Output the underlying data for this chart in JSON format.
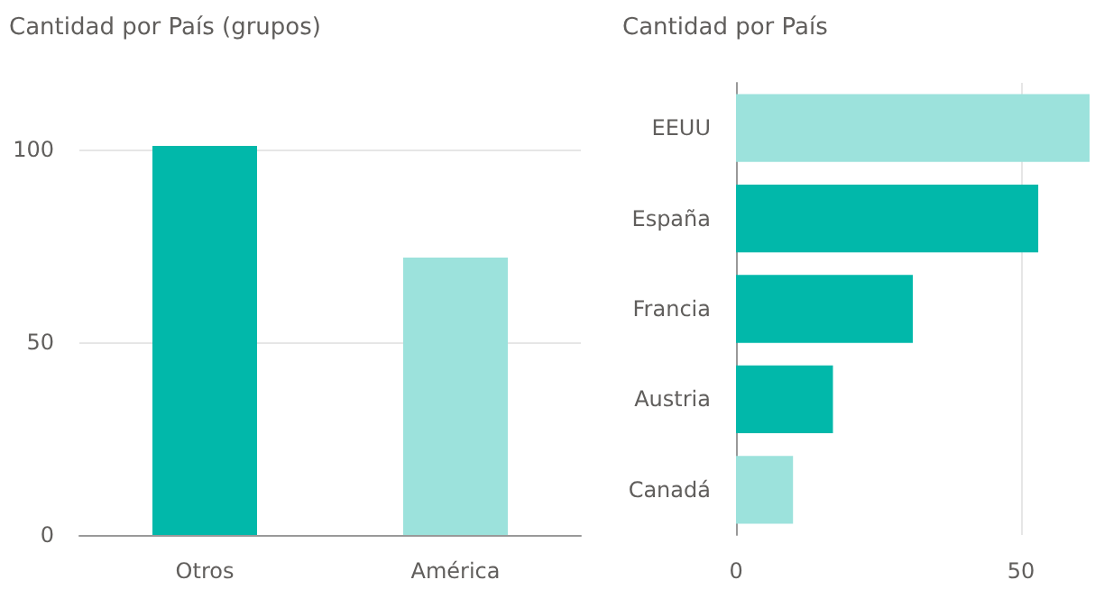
{
  "chart_data": [
    {
      "type": "bar",
      "title": "Cantidad por País (grupos)",
      "categories": [
        "Otros",
        "América"
      ],
      "values": [
        101,
        72
      ],
      "colors": [
        "#01b8aa",
        "#9ce2dc"
      ],
      "ylim": [
        0,
        101
      ],
      "yticks": [
        0,
        50,
        100
      ],
      "grid": "y"
    },
    {
      "type": "bar",
      "orientation": "horizontal",
      "title": "Cantidad por País",
      "categories": [
        "EEUU",
        "España",
        "Francia",
        "Austria",
        "Canadá"
      ],
      "values": [
        62,
        53,
        31,
        17,
        10
      ],
      "colors": [
        "#9ce2dc",
        "#01b8aa",
        "#01b8aa",
        "#01b8aa",
        "#9ce2dc"
      ],
      "xlim": [
        0,
        62
      ],
      "xticks": [
        0,
        50
      ],
      "grid": "x"
    }
  ]
}
